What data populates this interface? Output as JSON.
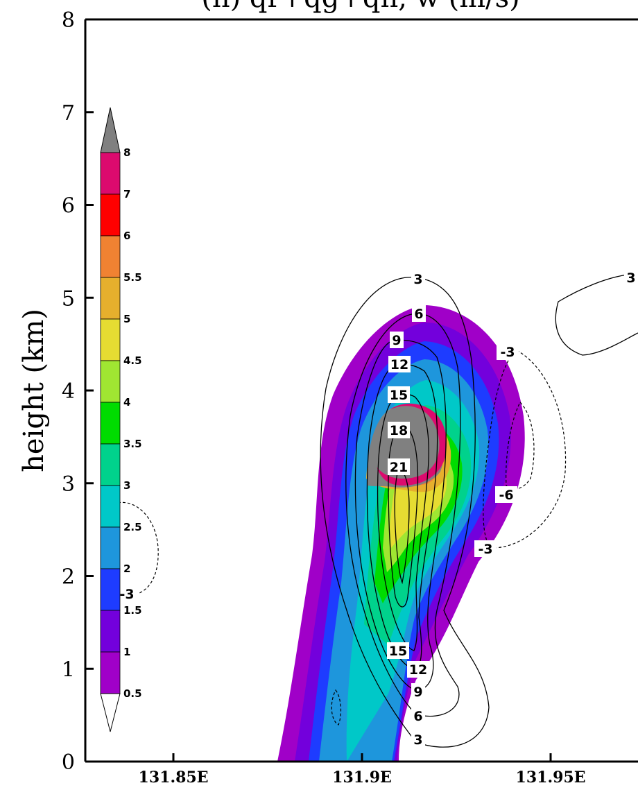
{
  "chart_data": {
    "type": "heatmap",
    "title": "(h) qr+qg+qh, w (m/s)",
    "ylabel": "height (km)",
    "xlabel": "",
    "ylim": [
      0,
      8
    ],
    "yticks": [
      0,
      1,
      2,
      3,
      4,
      5,
      6,
      7,
      8
    ],
    "xticks": [
      {
        "value": 131.85,
        "label": "131.85E"
      },
      {
        "value": 131.9,
        "label": "131.9E"
      },
      {
        "value": 131.95,
        "label": "131.95E"
      }
    ],
    "colorbar": {
      "levels": [
        "8",
        "7",
        "6",
        "5.5",
        "5",
        "4.5",
        "4",
        "3.5",
        "3",
        "2.5",
        "2",
        "1.5",
        "1",
        "0.5"
      ],
      "colors": [
        "#808080",
        "#dc0a6e",
        "#ff0000",
        "#f08232",
        "#e6af2d",
        "#e6dc32",
        "#a0e632",
        "#00dc00",
        "#00d28c",
        "#00c8c8",
        "#1e96dc",
        "#1e3cff",
        "#7300dc",
        "#a000c8"
      ],
      "extend": "both"
    },
    "contour_labels": [
      "3",
      "6",
      "9",
      "12",
      "15",
      "18",
      "21",
      "-3",
      "-6",
      "-3",
      "15",
      "12",
      "9",
      "6",
      "3",
      "-3",
      "3"
    ],
    "contour_lines": {
      "positive": "solid",
      "negative": "dashed"
    }
  }
}
